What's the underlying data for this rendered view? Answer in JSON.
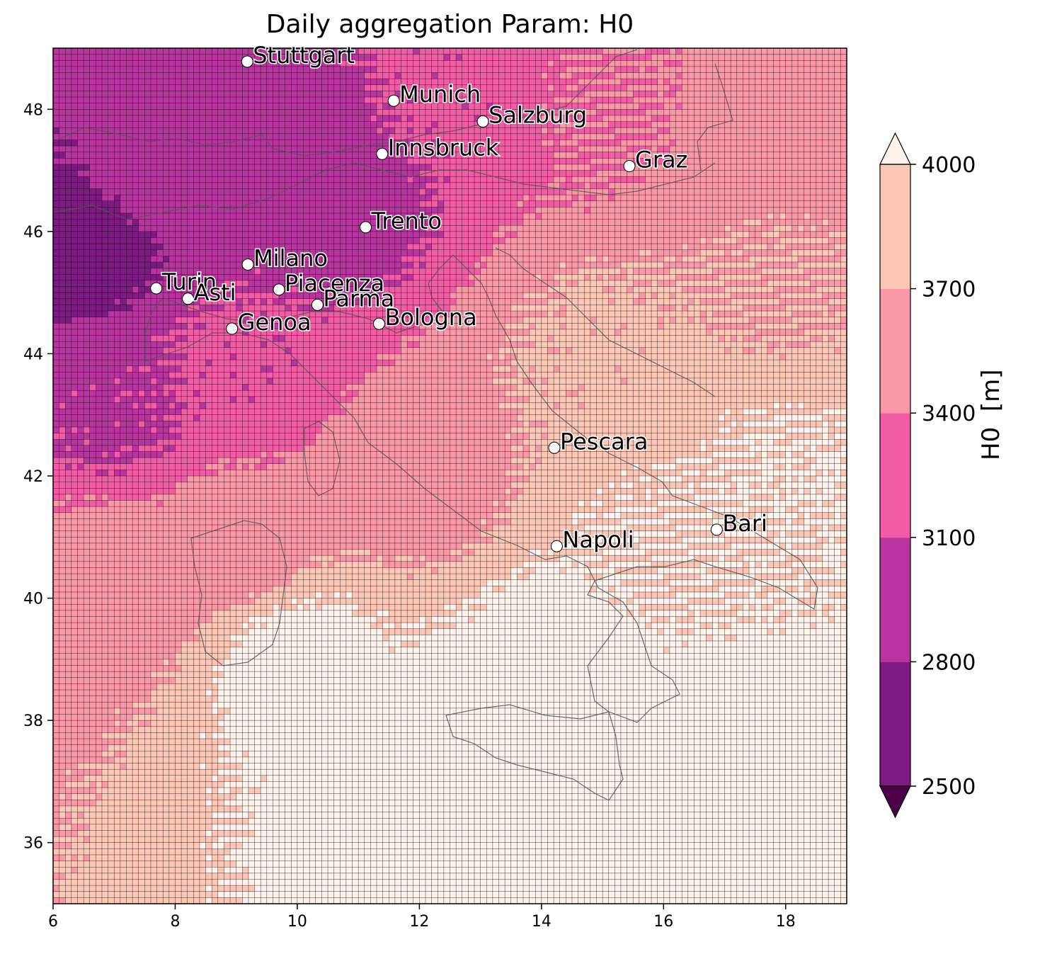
{
  "title": "Daily aggregation Param: H0",
  "colorbar": {
    "label": "H0  [m]",
    "ticks": [
      2500,
      2800,
      3100,
      3400,
      3700,
      4000
    ],
    "colors": [
      "#7d1b82",
      "#b8359f",
      "#f25ca5",
      "#fb98a8",
      "#fcc7b6"
    ],
    "under_color": "#4d004a",
    "over_color": "#fef2ec",
    "extend": "both"
  },
  "axes": {
    "x_ticks": [
      6,
      8,
      10,
      12,
      14,
      16,
      18
    ],
    "y_ticks": [
      36,
      38,
      40,
      42,
      44,
      46,
      48
    ],
    "xlim": [
      6,
      19
    ],
    "ylim": [
      35,
      49
    ],
    "grid_color": "#000000"
  },
  "cities": [
    {
      "name": "Stuttgart",
      "lon": 9.18,
      "lat": 48.78
    },
    {
      "name": "Munich",
      "lon": 11.58,
      "lat": 48.14
    },
    {
      "name": "Salzburg",
      "lon": 13.04,
      "lat": 47.8
    },
    {
      "name": "Innsbruck",
      "lon": 11.39,
      "lat": 47.27
    },
    {
      "name": "Graz",
      "lon": 15.44,
      "lat": 47.07
    },
    {
      "name": "Trento",
      "lon": 11.12,
      "lat": 46.07
    },
    {
      "name": "Milano",
      "lon": 9.19,
      "lat": 45.46
    },
    {
      "name": "Turin",
      "lon": 7.69,
      "lat": 45.07
    },
    {
      "name": "Asti",
      "lon": 8.21,
      "lat": 44.9
    },
    {
      "name": "Piacenza",
      "lon": 9.7,
      "lat": 45.05
    },
    {
      "name": "Parma",
      "lon": 10.33,
      "lat": 44.8
    },
    {
      "name": "Genoa",
      "lon": 8.93,
      "lat": 44.41
    },
    {
      "name": "Bologna",
      "lon": 11.34,
      "lat": 44.49
    },
    {
      "name": "Pescara",
      "lon": 14.21,
      "lat": 42.46
    },
    {
      "name": "Bari",
      "lon": 16.87,
      "lat": 41.12
    },
    {
      "name": "Napoli",
      "lon": 14.25,
      "lat": 40.85
    }
  ],
  "field": {
    "description_key": "h0",
    "anchors": [
      {
        "lon": 6.5,
        "lat": 45.8,
        "v": 2650
      },
      {
        "lon": 7.5,
        "lat": 47.0,
        "v": 2900
      },
      {
        "lon": 9.5,
        "lat": 47.5,
        "v": 2950
      },
      {
        "lon": 10.5,
        "lat": 46.5,
        "v": 3000
      },
      {
        "lon": 7.0,
        "lat": 43.0,
        "v": 3050
      },
      {
        "lon": 9.0,
        "lat": 43.8,
        "v": 3150
      },
      {
        "lon": 12.5,
        "lat": 48.5,
        "v": 3150
      },
      {
        "lon": 15.0,
        "lat": 48.0,
        "v": 3400
      },
      {
        "lon": 18.0,
        "lat": 48.0,
        "v": 3550
      },
      {
        "lon": 18.0,
        "lat": 45.0,
        "v": 3700
      },
      {
        "lon": 15.0,
        "lat": 44.0,
        "v": 3750
      },
      {
        "lon": 12.0,
        "lat": 42.0,
        "v": 3600
      },
      {
        "lon": 9.0,
        "lat": 41.0,
        "v": 3500
      },
      {
        "lon": 7.0,
        "lat": 40.5,
        "v": 3550
      },
      {
        "lon": 10.0,
        "lat": 39.0,
        "v": 4100
      },
      {
        "lon": 14.0,
        "lat": 39.0,
        "v": 4100
      },
      {
        "lon": 16.0,
        "lat": 41.0,
        "v": 4000
      },
      {
        "lon": 18.0,
        "lat": 42.0,
        "v": 4020
      },
      {
        "lon": 12.0,
        "lat": 37.0,
        "v": 4200
      },
      {
        "lon": 17.0,
        "lat": 37.0,
        "v": 4200
      }
    ]
  }
}
